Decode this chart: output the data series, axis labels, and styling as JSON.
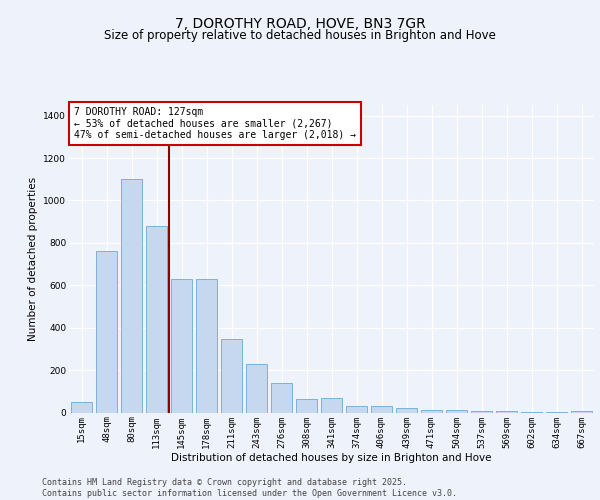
{
  "title": "7, DOROTHY ROAD, HOVE, BN3 7GR",
  "subtitle": "Size of property relative to detached houses in Brighton and Hove",
  "xlabel": "Distribution of detached houses by size in Brighton and Hove",
  "ylabel": "Number of detached properties",
  "categories": [
    "15sqm",
    "48sqm",
    "80sqm",
    "113sqm",
    "145sqm",
    "178sqm",
    "211sqm",
    "243sqm",
    "276sqm",
    "308sqm",
    "341sqm",
    "374sqm",
    "406sqm",
    "439sqm",
    "471sqm",
    "504sqm",
    "537sqm",
    "569sqm",
    "602sqm",
    "634sqm",
    "667sqm"
  ],
  "values": [
    50,
    760,
    1100,
    880,
    630,
    630,
    345,
    230,
    140,
    65,
    70,
    30,
    30,
    20,
    10,
    10,
    5,
    5,
    3,
    2,
    8
  ],
  "bar_color": "#c5d8f0",
  "bar_edge_color": "#6aaad4",
  "vline_color": "#8b0000",
  "annotation_text": "7 DOROTHY ROAD: 127sqm\n← 53% of detached houses are smaller (2,267)\n47% of semi-detached houses are larger (2,018) →",
  "annotation_box_color": "#ffffff",
  "annotation_box_edge_color": "#cc0000",
  "ylim": [
    0,
    1450
  ],
  "yticks": [
    0,
    200,
    400,
    600,
    800,
    1000,
    1200,
    1400
  ],
  "background_color": "#eef2fa",
  "footer": "Contains HM Land Registry data © Crown copyright and database right 2025.\nContains public sector information licensed under the Open Government Licence v3.0.",
  "title_fontsize": 10,
  "subtitle_fontsize": 8.5,
  "axis_label_fontsize": 7.5,
  "tick_fontsize": 6.5,
  "annotation_fontsize": 7,
  "footer_fontsize": 6
}
